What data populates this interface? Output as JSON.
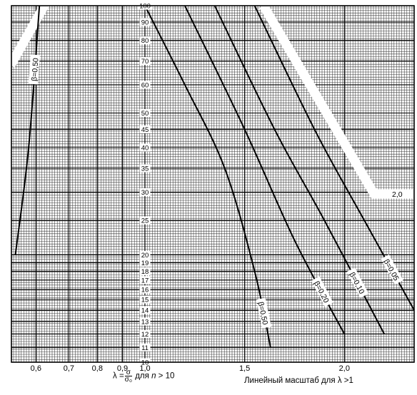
{
  "chart_data": {
    "type": "line",
    "title": "",
    "x_axis_left": {
      "scale": "logarithmic",
      "ticks": [
        0.6,
        0.7,
        0.8,
        0.9,
        1.0
      ],
      "tick_labels": [
        "0,6",
        "0,7",
        "0,8",
        "0,9",
        "1,0"
      ]
    },
    "x_axis_right": {
      "scale": "linear",
      "range": [
        1.0,
        2.35
      ],
      "ticks": [
        1.5,
        2.0
      ],
      "tick_labels": [
        "1,5",
        "2,0"
      ]
    },
    "n_axis": {
      "scale": "logarithmic",
      "range": [
        10,
        100
      ],
      "ticks": [
        10,
        11,
        12,
        13,
        14,
        15,
        16,
        17,
        18,
        19,
        20,
        25,
        30,
        35,
        40,
        45,
        50,
        60,
        70,
        80,
        90,
        100
      ],
      "tick_labels": [
        "10",
        "11",
        "12",
        "13",
        "14",
        "15",
        "16",
        "17",
        "18",
        "19",
        "20",
        "25",
        "30",
        "35",
        "40",
        "45",
        "50",
        "60",
        "70",
        "80",
        "90",
        "100"
      ]
    },
    "grid": true,
    "series": [
      {
        "name": "β=0,50",
        "side": "left",
        "points": [
          [
            0.545,
            20
          ],
          [
            0.58,
            40
          ],
          [
            0.61,
            100
          ]
        ]
      },
      {
        "name": "β=0,50",
        "side": "right",
        "points": [
          [
            1.0,
            100
          ],
          [
            1.2,
            60
          ],
          [
            1.4,
            35
          ],
          [
            1.55,
            18
          ],
          [
            1.63,
            11
          ]
        ]
      },
      {
        "name": "β=0,20",
        "side": "right",
        "points": [
          [
            1.2,
            100
          ],
          [
            1.5,
            45
          ],
          [
            1.75,
            22
          ],
          [
            2.0,
            12
          ]
        ]
      },
      {
        "name": "β=0,10",
        "side": "right",
        "points": [
          [
            1.35,
            100
          ],
          [
            1.65,
            45
          ],
          [
            1.9,
            25
          ],
          [
            2.2,
            12
          ]
        ]
      },
      {
        "name": "β=0,05",
        "side": "right",
        "points": [
          [
            1.55,
            100
          ],
          [
            1.85,
            45
          ],
          [
            2.1,
            25
          ],
          [
            2.35,
            14
          ]
        ]
      }
    ],
    "annotations": {
      "boundary_value_label": "2,0"
    },
    "xlabel_left": {
      "prefix": "λ =",
      "numerator": "σ",
      "denominator": "σ₀",
      "suffix_a": "для",
      "variable": "n",
      "suffix_b": "> 10"
    },
    "xlabel_right": "Линейный масштаб для λ >1"
  }
}
